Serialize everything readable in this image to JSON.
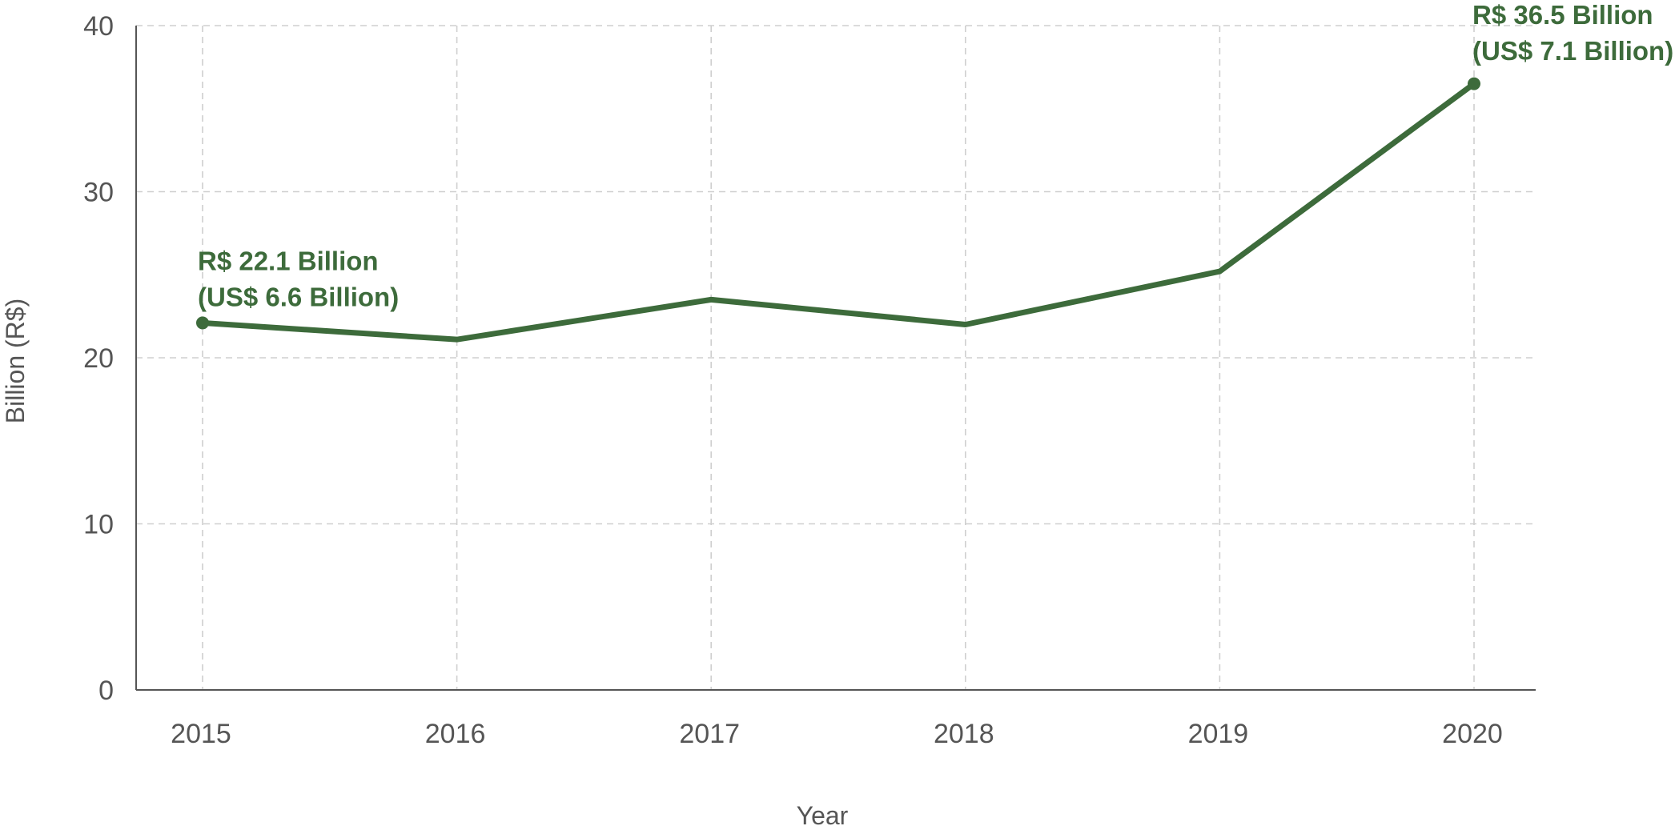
{
  "chart_data": {
    "type": "line",
    "title": "",
    "xlabel": "Year",
    "ylabel": "Billion (R$)",
    "x": [
      "2015",
      "2016",
      "2017",
      "2018",
      "2019",
      "2020"
    ],
    "series": [
      {
        "values": [
          22.1,
          21.1,
          23.5,
          22.0,
          25.2,
          36.5
        ]
      }
    ],
    "yticks": [
      "0",
      "10",
      "20",
      "30",
      "40"
    ],
    "ylim": [
      0,
      40
    ],
    "grid": true,
    "legend": "none",
    "annotations": [
      {
        "x": "2015",
        "y": 22.1,
        "lines": [
          "R$ 22.1 Billion",
          "(US$ 6.6 Billion)"
        ]
      },
      {
        "x": "2020",
        "y": 36.5,
        "lines": [
          "R$ 36.5 Billion",
          "(US$ 7.1 Billion)"
        ]
      }
    ],
    "colors": {
      "series": "#3d6b3b",
      "grid": "#cfcfcf",
      "axis": "#555555",
      "text": "#555555"
    }
  }
}
